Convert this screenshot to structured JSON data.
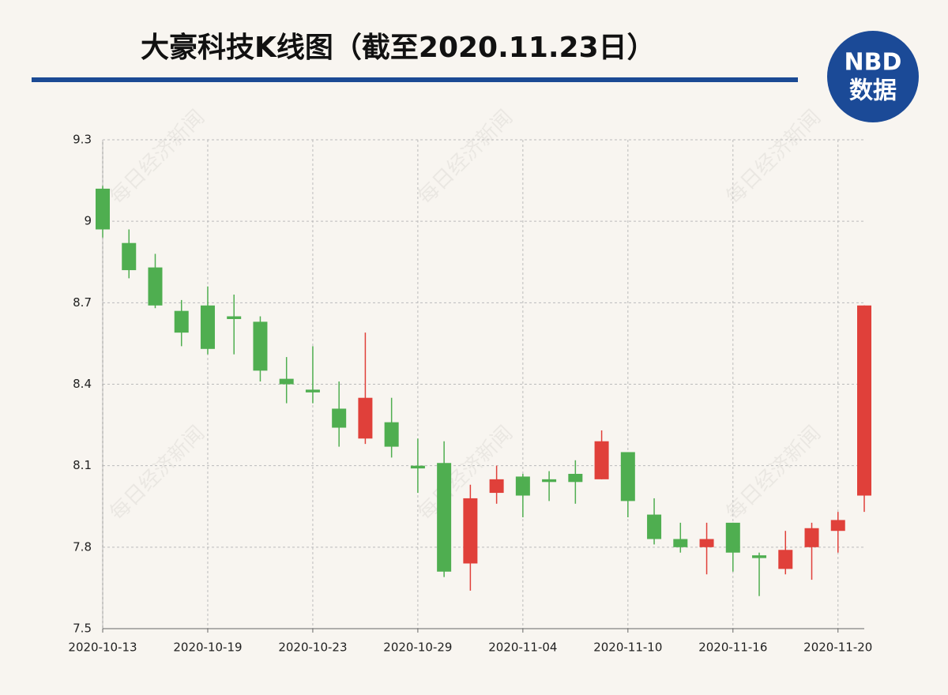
{
  "chart_data": {
    "type": "candlestick",
    "title": "大豪科技K线图（截至2020.11.23日）",
    "logo": {
      "line1": "NBD",
      "line2": "数据"
    },
    "watermark": "每日经济新闻",
    "categories": [
      "2020-10-13",
      null,
      null,
      null,
      "2020-10-19",
      null,
      null,
      null,
      "2020-10-23",
      null,
      null,
      null,
      "2020-10-29",
      null,
      null,
      null,
      "2020-11-04",
      null,
      null,
      null,
      "2020-11-10",
      null,
      null,
      null,
      "2020-11-16",
      null,
      null,
      null,
      "2020-11-20",
      null
    ],
    "open": [
      9.12,
      8.92,
      8.83,
      8.67,
      8.69,
      8.65,
      8.63,
      8.42,
      8.38,
      8.31,
      8.2,
      8.26,
      8.1,
      8.11,
      7.74,
      8.0,
      8.06,
      8.05,
      8.07,
      8.05,
      8.15,
      7.92,
      7.83,
      7.8,
      7.89,
      7.77,
      7.72,
      7.8,
      7.86,
      7.99
    ],
    "high": [
      9.13,
      8.97,
      8.88,
      8.71,
      8.76,
      8.73,
      8.65,
      8.5,
      8.54,
      8.41,
      8.59,
      8.35,
      8.2,
      8.19,
      8.03,
      8.1,
      8.07,
      8.08,
      8.12,
      8.23,
      8.15,
      7.98,
      7.89,
      7.89,
      7.89,
      7.78,
      7.86,
      7.89,
      7.93,
      8.69
    ],
    "low": [
      8.94,
      8.79,
      8.68,
      8.54,
      8.51,
      8.51,
      8.41,
      8.33,
      8.33,
      8.17,
      8.18,
      8.13,
      8.0,
      7.69,
      7.64,
      7.96,
      7.91,
      7.97,
      7.96,
      8.05,
      7.91,
      7.81,
      7.78,
      7.7,
      7.71,
      7.62,
      7.7,
      7.68,
      7.78,
      7.93
    ],
    "close": [
      8.97,
      8.82,
      8.69,
      8.59,
      8.53,
      8.64,
      8.45,
      8.4,
      8.37,
      8.24,
      8.35,
      8.17,
      8.09,
      7.71,
      7.98,
      8.05,
      7.99,
      8.04,
      8.04,
      8.19,
      7.97,
      7.83,
      7.8,
      7.83,
      7.78,
      7.76,
      7.79,
      7.87,
      7.9,
      8.69
    ],
    "up_color": "#e0403a",
    "down_color": "#4fae50",
    "ylim": [
      7.5,
      9.3
    ],
    "yticks": [
      7.5,
      7.8,
      8.1,
      8.4,
      8.7,
      9,
      9.3
    ],
    "grid": true
  }
}
